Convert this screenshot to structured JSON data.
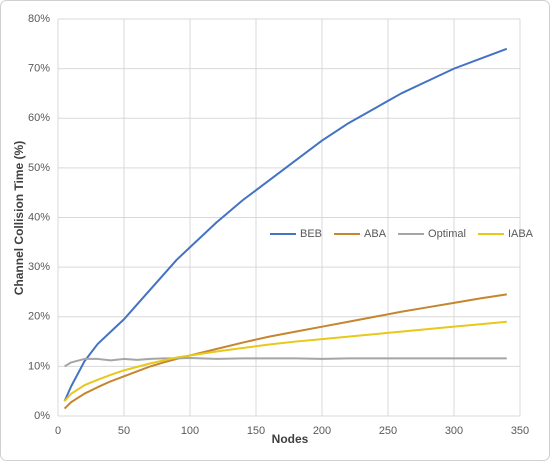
{
  "chart_data": {
    "type": "line",
    "x_label": "Nodes",
    "y_label": "Channel Collision Time (%)",
    "x": [
      5,
      10,
      20,
      30,
      40,
      50,
      60,
      70,
      80,
      90,
      100,
      120,
      140,
      160,
      180,
      200,
      220,
      240,
      260,
      280,
      300,
      320,
      340
    ],
    "series": [
      {
        "name": "BEB",
        "color": "#4472c4",
        "values": [
          3,
          6,
          11,
          14.5,
          17,
          19.5,
          22.5,
          25.5,
          28.5,
          31.5,
          34,
          39,
          43.5,
          47.5,
          51.5,
          55.5,
          59,
          62,
          65,
          67.5,
          70,
          72,
          74
        ]
      },
      {
        "name": "ABA",
        "color": "#c5862f",
        "values": [
          1.5,
          2.8,
          4.5,
          5.8,
          7,
          8,
          9,
          10,
          10.8,
          11.5,
          12.2,
          13.5,
          14.8,
          16,
          17,
          18,
          19,
          20,
          21,
          21.9,
          22.8,
          23.7,
          24.5
        ]
      },
      {
        "name": "Optimal",
        "color": "#a5a5a5",
        "values": [
          10,
          10.8,
          11.5,
          11.5,
          11.2,
          11.5,
          11.3,
          11.5,
          11.6,
          11.6,
          11.7,
          11.5,
          11.6,
          11.6,
          11.6,
          11.5,
          11.6,
          11.6,
          11.6,
          11.6,
          11.6,
          11.6,
          11.6
        ]
      },
      {
        "name": "IABA",
        "color": "#e8c81a",
        "values": [
          3,
          4.5,
          6.2,
          7.3,
          8.3,
          9.2,
          9.9,
          10.6,
          11.2,
          11.8,
          12.2,
          13,
          13.7,
          14.4,
          15,
          15.5,
          16,
          16.5,
          17,
          17.5,
          18,
          18.5,
          19
        ]
      }
    ],
    "xlim": [
      0,
      350
    ],
    "xticks": [
      0,
      50,
      100,
      150,
      200,
      250,
      300,
      350
    ],
    "ylim": [
      0,
      80
    ],
    "yticks": [
      {
        "value": 0,
        "label": "0%"
      },
      {
        "value": 10,
        "label": "10%"
      },
      {
        "value": 20,
        "label": "20%"
      },
      {
        "value": 30,
        "label": "30%"
      },
      {
        "value": 40,
        "label": "40%"
      },
      {
        "value": 50,
        "label": "50%"
      },
      {
        "value": 60,
        "label": "60%"
      },
      {
        "value": 70,
        "label": "70%"
      },
      {
        "value": 80,
        "label": "80%"
      }
    ],
    "grid": true
  }
}
